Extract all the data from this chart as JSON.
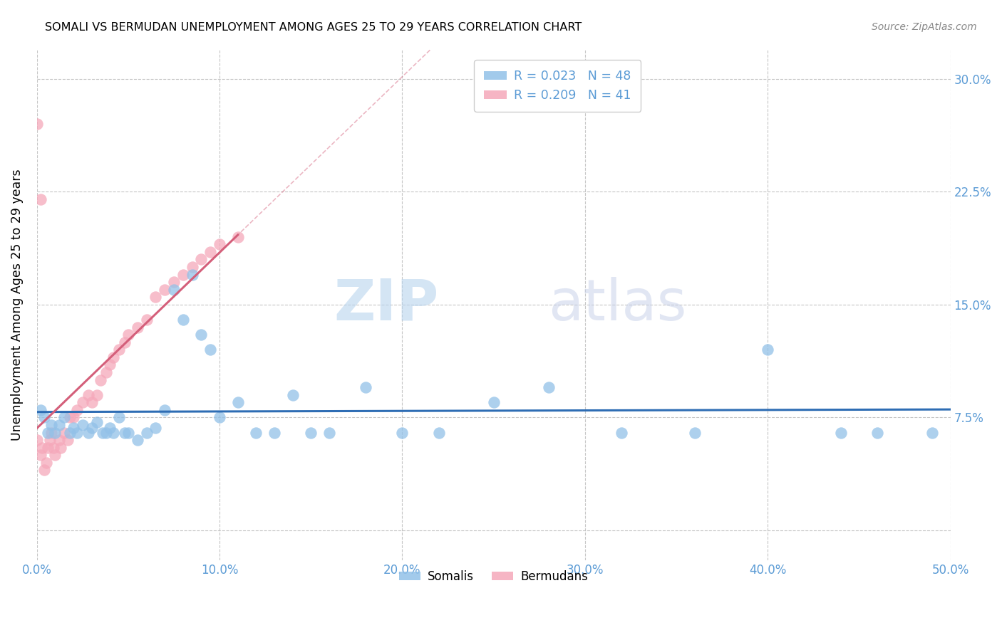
{
  "title": "SOMALI VS BERMUDAN UNEMPLOYMENT AMONG AGES 25 TO 29 YEARS CORRELATION CHART",
  "source": "Source: ZipAtlas.com",
  "ylabel": "Unemployment Among Ages 25 to 29 years",
  "xlim": [
    0.0,
    0.5
  ],
  "ylim": [
    -0.02,
    0.32
  ],
  "xticks": [
    0.0,
    0.1,
    0.2,
    0.3,
    0.4,
    0.5
  ],
  "xticklabels": [
    "0.0%",
    "10.0%",
    "20.0%",
    "30.0%",
    "40.0%",
    "50.0%"
  ],
  "yticks": [
    0.0,
    0.075,
    0.15,
    0.225,
    0.3
  ],
  "yticklabels_right": [
    "",
    "7.5%",
    "15.0%",
    "22.5%",
    "30.0%"
  ],
  "watermark_zip": "ZIP",
  "watermark_atlas": "atlas",
  "legend_somali_r": "R = 0.023",
  "legend_somali_n": "N = 48",
  "legend_bermudan_r": "R = 0.209",
  "legend_bermudan_n": "N = 41",
  "somali_color": "#92c1e8",
  "bermudan_color": "#f5a8ba",
  "trend_somali_color": "#2e6db4",
  "trend_bermudan_color": "#d45f7a",
  "tick_color": "#5b9bd5",
  "somali_x": [
    0.002,
    0.004,
    0.006,
    0.008,
    0.01,
    0.012,
    0.015,
    0.018,
    0.02,
    0.022,
    0.025,
    0.028,
    0.03,
    0.033,
    0.036,
    0.038,
    0.04,
    0.042,
    0.045,
    0.048,
    0.05,
    0.055,
    0.06,
    0.065,
    0.07,
    0.075,
    0.08,
    0.085,
    0.09,
    0.095,
    0.1,
    0.11,
    0.12,
    0.13,
    0.14,
    0.15,
    0.16,
    0.18,
    0.2,
    0.22,
    0.25,
    0.28,
    0.32,
    0.36,
    0.4,
    0.44,
    0.46,
    0.49
  ],
  "somali_y": [
    0.08,
    0.075,
    0.065,
    0.07,
    0.065,
    0.07,
    0.075,
    0.065,
    0.068,
    0.065,
    0.07,
    0.065,
    0.068,
    0.072,
    0.065,
    0.065,
    0.068,
    0.065,
    0.075,
    0.065,
    0.065,
    0.06,
    0.065,
    0.068,
    0.08,
    0.16,
    0.14,
    0.17,
    0.13,
    0.12,
    0.075,
    0.085,
    0.065,
    0.065,
    0.09,
    0.065,
    0.065,
    0.095,
    0.065,
    0.065,
    0.085,
    0.095,
    0.065,
    0.065,
    0.12,
    0.065,
    0.065,
    0.065
  ],
  "bermudan_x": [
    0.0,
    0.002,
    0.003,
    0.004,
    0.005,
    0.006,
    0.007,
    0.008,
    0.009,
    0.01,
    0.012,
    0.013,
    0.015,
    0.017,
    0.018,
    0.02,
    0.022,
    0.025,
    0.028,
    0.03,
    0.033,
    0.035,
    0.038,
    0.04,
    0.042,
    0.045,
    0.048,
    0.05,
    0.055,
    0.06,
    0.065,
    0.07,
    0.075,
    0.08,
    0.085,
    0.09,
    0.095,
    0.1,
    0.11,
    0.0,
    0.002
  ],
  "bermudan_y": [
    0.06,
    0.05,
    0.055,
    0.04,
    0.045,
    0.055,
    0.06,
    0.065,
    0.055,
    0.05,
    0.06,
    0.055,
    0.065,
    0.06,
    0.075,
    0.075,
    0.08,
    0.085,
    0.09,
    0.085,
    0.09,
    0.1,
    0.105,
    0.11,
    0.115,
    0.12,
    0.125,
    0.13,
    0.135,
    0.14,
    0.155,
    0.16,
    0.165,
    0.17,
    0.175,
    0.18,
    0.185,
    0.19,
    0.195,
    0.27,
    0.22
  ],
  "trend_solid_x_end": 0.11,
  "trend_dash_x_end": 0.3
}
